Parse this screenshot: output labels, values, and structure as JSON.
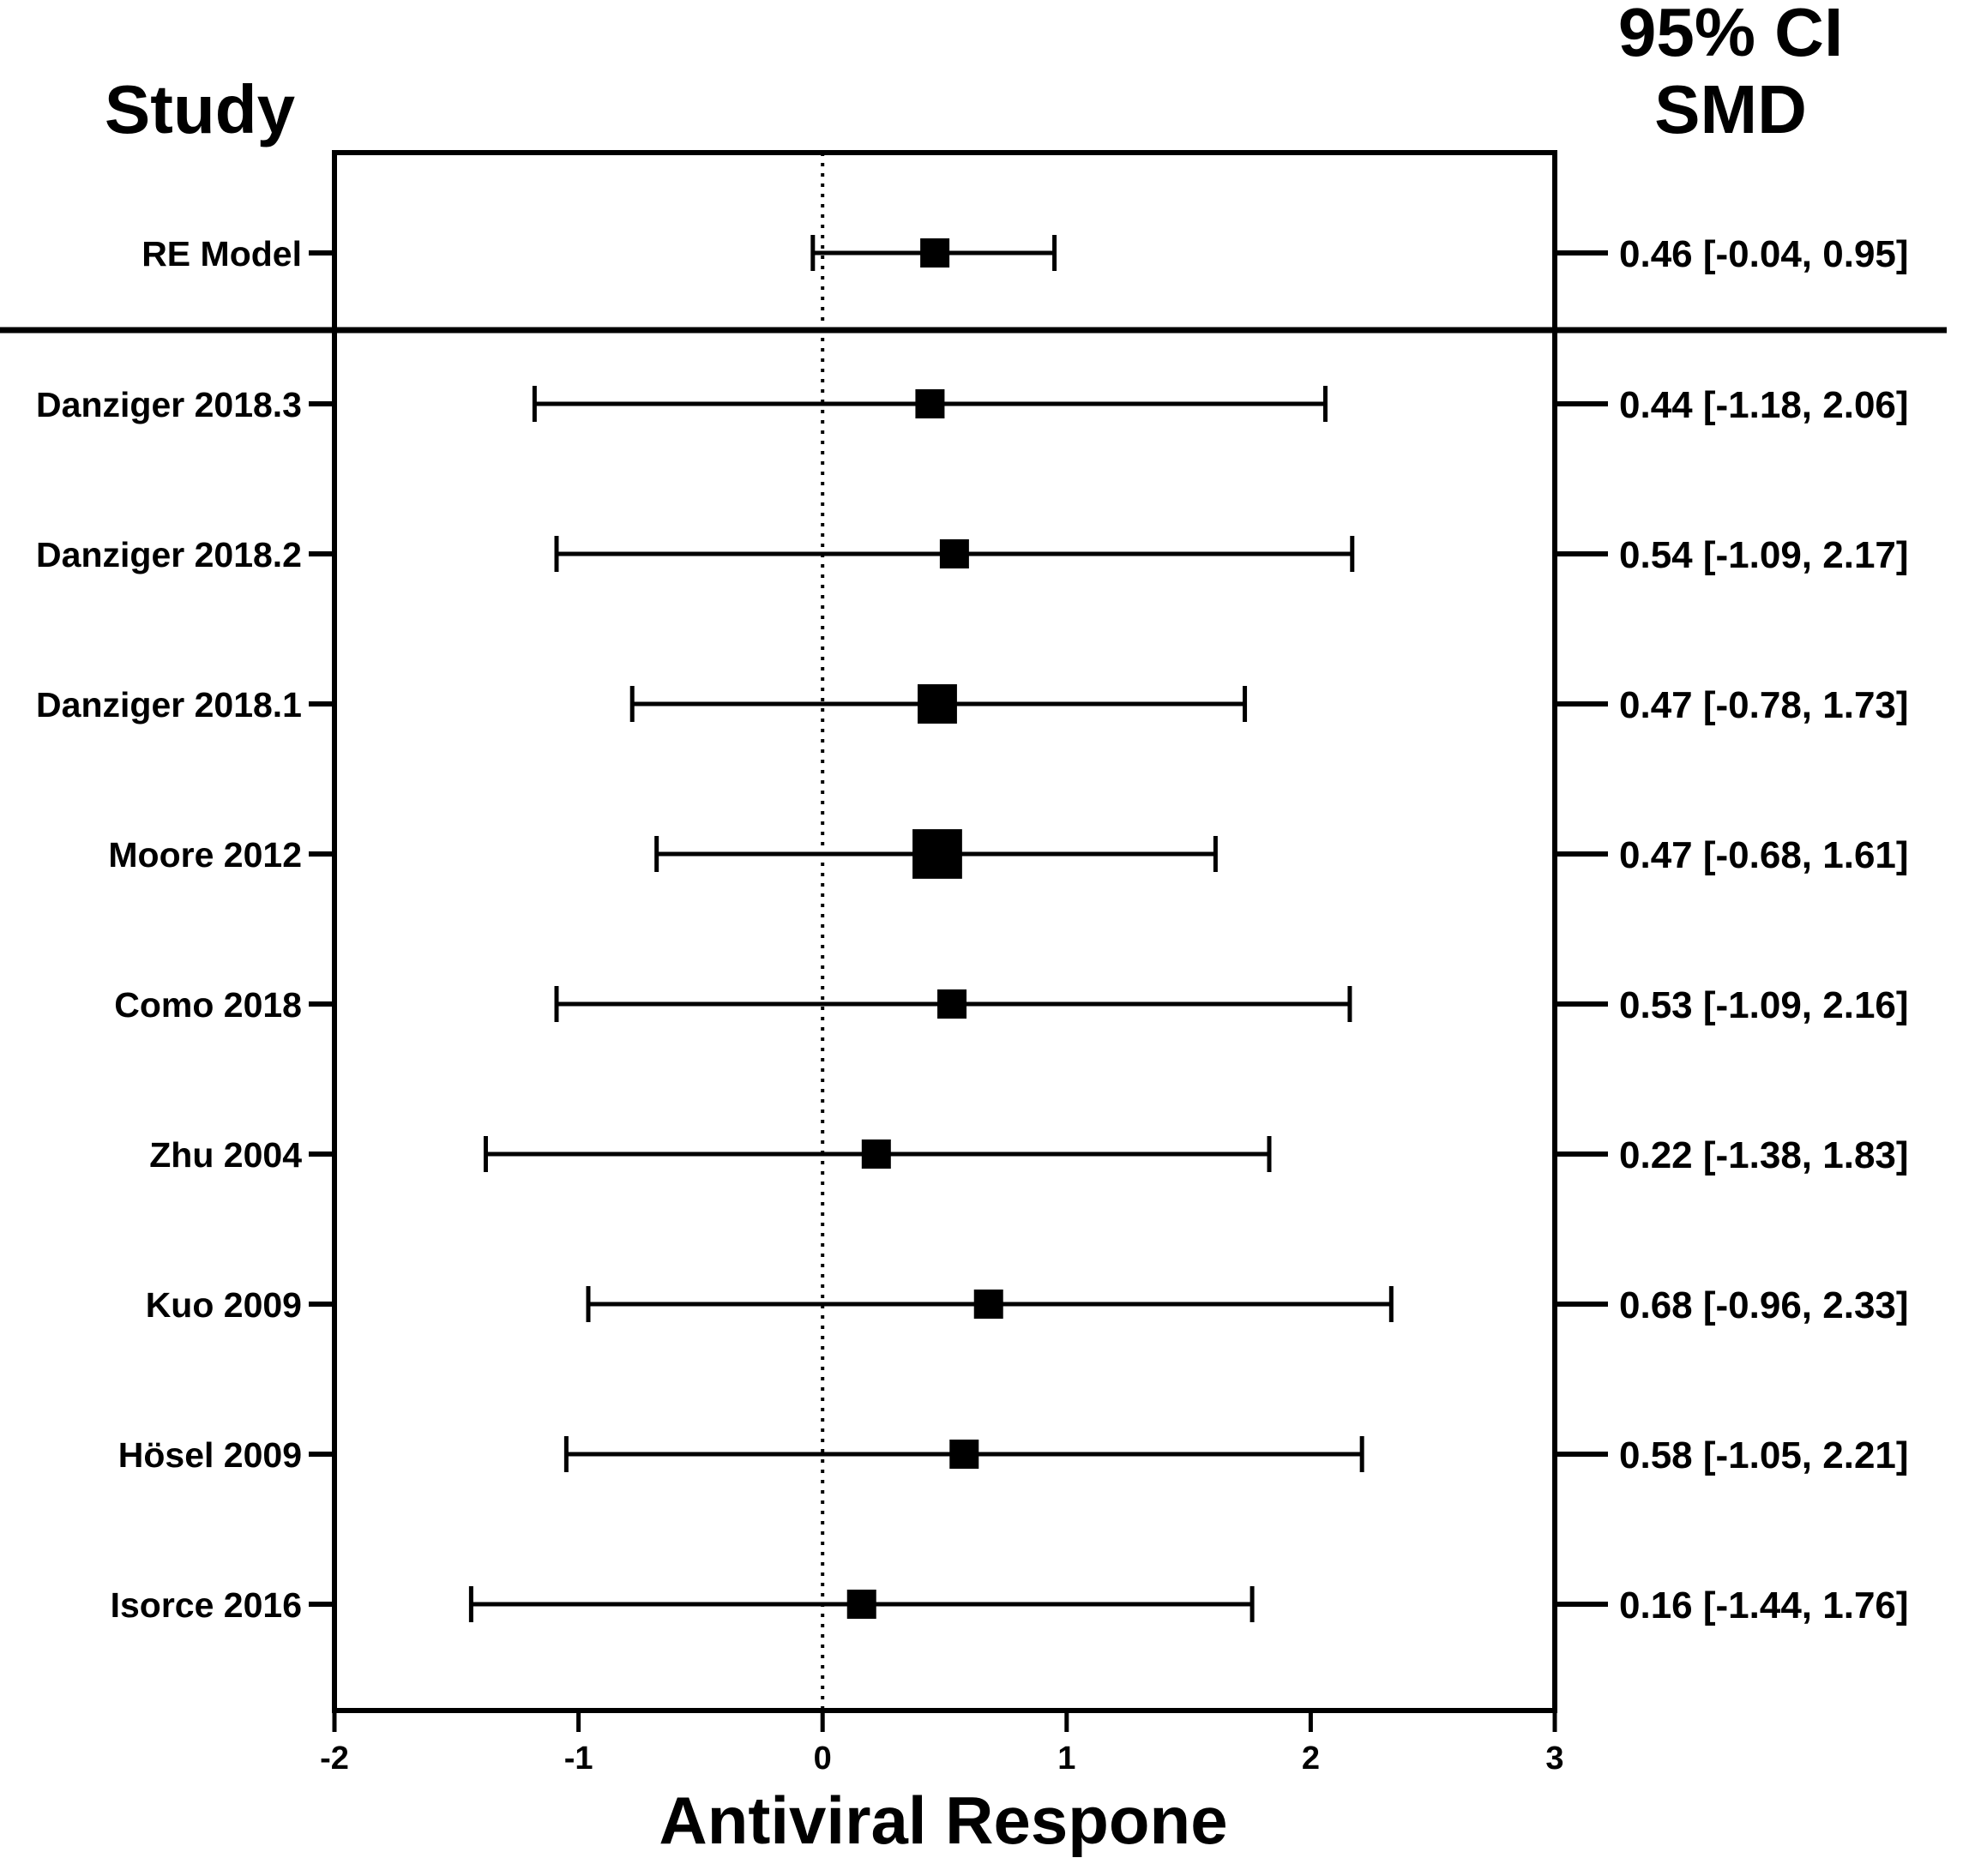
{
  "chart_data": {
    "type": "forest",
    "headers": {
      "study": "Study",
      "ci_line1": "95% CI",
      "ci_line2": "SMD"
    },
    "xlabel": "Antiviral Respone",
    "xlim": [
      -2,
      3
    ],
    "xticks": [
      "-2",
      "-1",
      "0",
      "1",
      "2",
      "3"
    ],
    "reference_line": 0,
    "summary": {
      "study": "RE Model",
      "estimate": 0.46,
      "lower": -0.04,
      "upper": 0.95,
      "label": "0.46 [-0.04, 0.95]"
    },
    "studies": [
      {
        "study": "Danziger 2018.3",
        "estimate": 0.44,
        "lower": -1.18,
        "upper": 2.06,
        "weight": 1.0,
        "label": "0.44 [-1.18, 2.06]"
      },
      {
        "study": "Danziger 2018.2",
        "estimate": 0.54,
        "lower": -1.09,
        "upper": 2.17,
        "weight": 1.0,
        "label": "0.54 [-1.09, 2.17]"
      },
      {
        "study": "Danziger 2018.1",
        "estimate": 0.47,
        "lower": -0.78,
        "upper": 1.73,
        "weight": 1.35,
        "label": "0.47 [-0.78, 1.73]"
      },
      {
        "study": "Moore 2012",
        "estimate": 0.47,
        "lower": -0.68,
        "upper": 1.61,
        "weight": 1.7,
        "label": "0.47 [-0.68, 1.61]"
      },
      {
        "study": "Como 2018",
        "estimate": 0.53,
        "lower": -1.09,
        "upper": 2.16,
        "weight": 1.0,
        "label": "0.53 [-1.09, 2.16]"
      },
      {
        "study": "Zhu 2004",
        "estimate": 0.22,
        "lower": -1.38,
        "upper": 1.83,
        "weight": 1.0,
        "label": "0.22 [-1.38, 1.83]"
      },
      {
        "study": "Kuo 2009",
        "estimate": 0.68,
        "lower": -0.96,
        "upper": 2.33,
        "weight": 1.0,
        "label": "0.68 [-0.96, 2.33]"
      },
      {
        "study": "Hösel 2009",
        "estimate": 0.58,
        "lower": -1.05,
        "upper": 2.21,
        "weight": 1.0,
        "label": "0.58 [-1.05, 2.21]"
      },
      {
        "study": "Isorce 2016",
        "estimate": 0.16,
        "lower": -1.44,
        "upper": 1.76,
        "weight": 1.0,
        "label": "0.16 [-1.44, 1.76]"
      }
    ]
  }
}
